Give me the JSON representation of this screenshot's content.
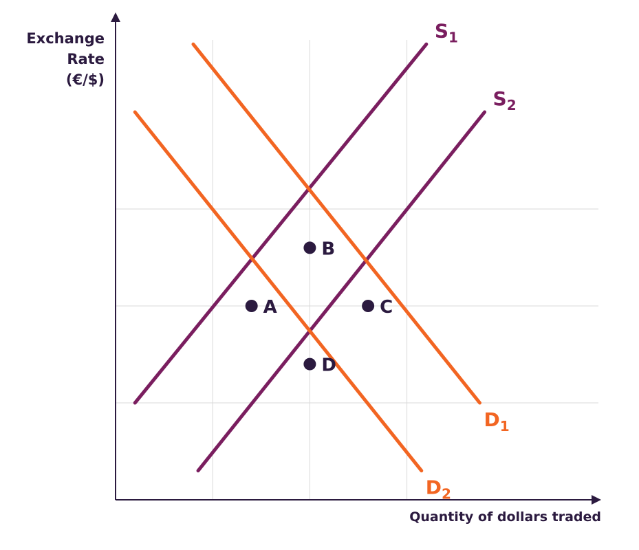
{
  "chart_data": {
    "type": "line",
    "ylabel_lines": [
      "Exchange",
      "Rate",
      "(€/$)"
    ],
    "xlabel": "Quantity of dollars traded",
    "xlim": [
      0,
      10
    ],
    "ylim": [
      0,
      10
    ],
    "x_gridlines": [
      2,
      4,
      6
    ],
    "y_gridlines": [
      2,
      4,
      6
    ],
    "grid": true,
    "series": [
      {
        "name": "S",
        "subscript": "1",
        "kind": "supply",
        "x": [
          0.4,
          6.4
        ],
        "y": [
          2,
          9.4
        ],
        "color": "#7a1e5f"
      },
      {
        "name": "S",
        "subscript": "2",
        "kind": "supply",
        "x": [
          1.7,
          7.6
        ],
        "y": [
          0.6,
          8
        ],
        "color": "#7a1e5f"
      },
      {
        "name": "D",
        "subscript": "1",
        "kind": "demand",
        "x": [
          1.6,
          7.5
        ],
        "y": [
          9.4,
          2
        ],
        "color": "#f26522"
      },
      {
        "name": "D",
        "subscript": "2",
        "kind": "demand",
        "x": [
          0.4,
          6.3
        ],
        "y": [
          8,
          0.6
        ],
        "color": "#f26522"
      }
    ],
    "points": [
      {
        "label": "A",
        "x": 2.8,
        "y": 4
      },
      {
        "label": "B",
        "x": 4,
        "y": 5.2
      },
      {
        "label": "C",
        "x": 5.2,
        "y": 4
      },
      {
        "label": "D",
        "x": 4,
        "y": 2.8
      }
    ]
  }
}
